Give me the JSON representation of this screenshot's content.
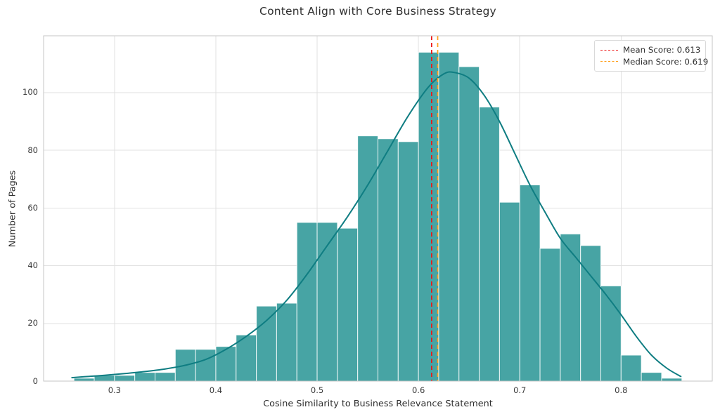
{
  "title": "Content Align with Core Business Strategy",
  "axes": {
    "x_label": "Cosine Similarity to Business Relevance Statement",
    "y_label": "Number of Pages",
    "x_ticks": [
      0.3,
      0.4,
      0.5,
      0.6,
      0.7,
      0.8
    ],
    "y_ticks": [
      0,
      20,
      40,
      60,
      80,
      100
    ],
    "xlim": [
      0.23,
      0.89
    ],
    "ylim": [
      0,
      119.7
    ],
    "grid": true
  },
  "legend": {
    "position": "upper-right",
    "items": [
      {
        "label": "Mean Score: 0.613",
        "color": "#ed1616",
        "line_style": "dashed"
      },
      {
        "label": "Median Score: 0.619",
        "color": "#ffa01e",
        "line_style": "dashed"
      }
    ]
  },
  "chart_data": {
    "type": "histogram+kde",
    "title": "Content Align with Core Business Strategy",
    "xlabel": "Cosine Similarity to Business Relevance Statement",
    "ylabel": "Number of Pages",
    "bin_start": 0.26,
    "bin_width": 0.02,
    "counts": [
      1,
      2,
      2,
      3,
      3,
      11,
      11,
      12,
      16,
      26,
      27,
      55,
      55,
      53,
      85,
      84,
      83,
      114,
      114,
      109,
      95,
      62,
      68,
      46,
      51,
      47,
      33,
      9,
      3,
      1
    ],
    "kde_points": [
      [
        0.258,
        1.2
      ],
      [
        0.27,
        1.5
      ],
      [
        0.29,
        2.0
      ],
      [
        0.31,
        2.6
      ],
      [
        0.33,
        3.3
      ],
      [
        0.35,
        4.2
      ],
      [
        0.37,
        5.5
      ],
      [
        0.39,
        7.5
      ],
      [
        0.41,
        11.0
      ],
      [
        0.43,
        15.5
      ],
      [
        0.45,
        21.0
      ],
      [
        0.47,
        28.0
      ],
      [
        0.49,
        37.0
      ],
      [
        0.51,
        47.0
      ],
      [
        0.53,
        57.0
      ],
      [
        0.55,
        68.0
      ],
      [
        0.57,
        80.0
      ],
      [
        0.59,
        92.0
      ],
      [
        0.61,
        102.0
      ],
      [
        0.625,
        106.5
      ],
      [
        0.635,
        107.0
      ],
      [
        0.65,
        105.0
      ],
      [
        0.665,
        99.0
      ],
      [
        0.68,
        90.0
      ],
      [
        0.695,
        79.0
      ],
      [
        0.71,
        68.0
      ],
      [
        0.725,
        58.5
      ],
      [
        0.74,
        49.5
      ],
      [
        0.755,
        43.0
      ],
      [
        0.77,
        36.5
      ],
      [
        0.785,
        30.0
      ],
      [
        0.8,
        23.0
      ],
      [
        0.815,
        15.5
      ],
      [
        0.83,
        9.0
      ],
      [
        0.845,
        4.5
      ],
      [
        0.859,
        1.6
      ]
    ],
    "mean_score": 0.613,
    "median_score": 0.619,
    "colors": {
      "bar_fill": "#47a4a4",
      "bar_edge": "rgba(255,255,255,0.85)",
      "kde_line": "#0f7d82",
      "mean_line": "#ed1616",
      "median_line": "#ffa01e",
      "grid": "#e1e1e1",
      "spine": "#c6c6c6",
      "text": "#3a3a3a"
    }
  }
}
